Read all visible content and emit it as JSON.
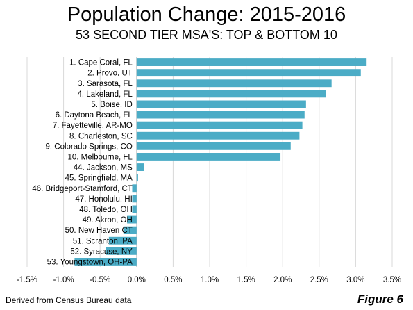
{
  "chart_data": {
    "type": "bar",
    "orientation": "horizontal",
    "title": "Population Change: 2015-2016",
    "subtitle": "53 SECOND TIER MSA'S: TOP & BOTTOM 10",
    "categories": [
      "1. Cape Coral, FL",
      "2. Provo, UT",
      "3. Sarasota, FL",
      "4. Lakeland, FL",
      "5. Boise, ID",
      "6. Daytona Beach, FL",
      "7. Fayetteville, AR-MO",
      "8. Charleston, SC",
      "9. Colorado Springs, CO",
      "10. Melbourne, FL",
      "44. Jackson, MS",
      "45. Springfield, MA",
      "46. Bridgeport-Stamford, CT",
      "47. Honolulu, HI",
      "48. Toledo, OH",
      "49. Akron, OH",
      "50. New Haven CT",
      "51. Scranton, PA",
      "52. Syracuse, NY",
      "53. Youngstown, OH-PA"
    ],
    "values": [
      3.15,
      3.07,
      2.67,
      2.59,
      2.32,
      2.3,
      2.27,
      2.23,
      2.11,
      1.97,
      0.1,
      0.02,
      -0.06,
      -0.06,
      -0.06,
      -0.13,
      -0.18,
      -0.38,
      -0.42,
      -0.85
    ],
    "xlim": [
      -1.5,
      3.5
    ],
    "xticks": [
      "-1.5%",
      "-1.0%",
      "-0.5%",
      "0.0%",
      "0.5%",
      "1.0%",
      "1.5%",
      "2.0%",
      "2.5%",
      "3.0%",
      "3.5%"
    ],
    "xtick_values": [
      -1.5,
      -1.0,
      -0.5,
      0.0,
      0.5,
      1.0,
      1.5,
      2.0,
      2.5,
      3.0,
      3.5
    ],
    "grid": true,
    "legend": "none",
    "bar_color": "#4BACC6",
    "grid_color": "#D9D9D9"
  },
  "footer": {
    "source": "Derived from Census Bureau data",
    "figure_label": "Figure 6"
  }
}
